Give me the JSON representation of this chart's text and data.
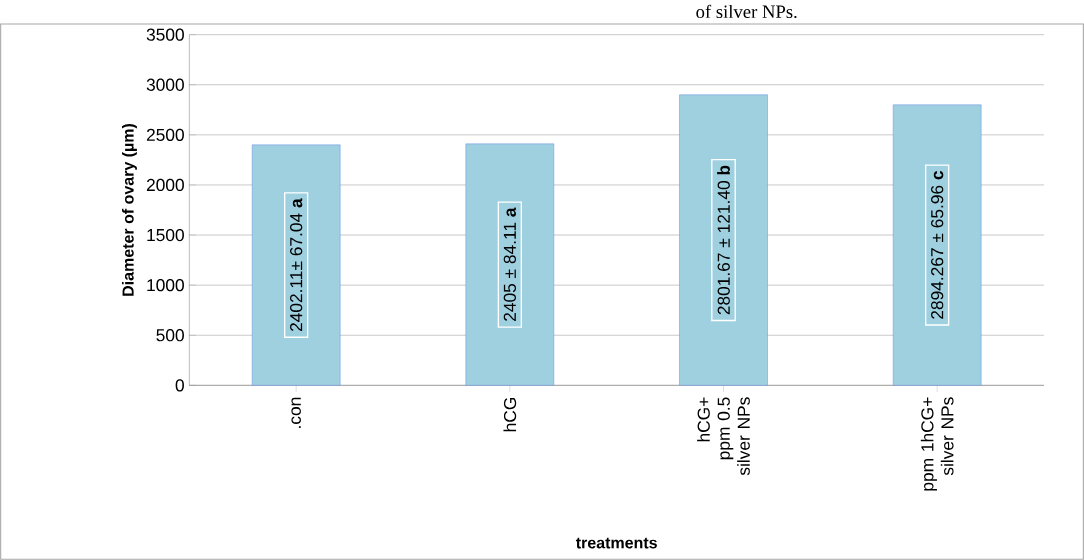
{
  "chart_data": {
    "type": "bar",
    "xlabel": "treatments",
    "ylabel": "Diameter of ovary (µm)",
    "categories": [
      ".con",
      "hCG",
      "hCG+ ppm 0.5 silver NPs",
      "ppm 1hCG+ silver NPs"
    ],
    "values": [
      2400,
      2410,
      2900,
      2800
    ],
    "color": "#9fd0e0",
    "ylim": [
      0,
      3500
    ],
    "yticks": [
      0,
      500,
      1000,
      1500,
      2000,
      2500,
      3000,
      3500
    ],
    "grid": "y",
    "annotations": [
      "2402.11± 67.04 **a**",
      "2405 ± 84.11 **a**",
      "2801.67 ± 121.40 **b**",
      "2894.267 ± 65.96 **c**",
      "of silver NPs."
    ]
  }
}
